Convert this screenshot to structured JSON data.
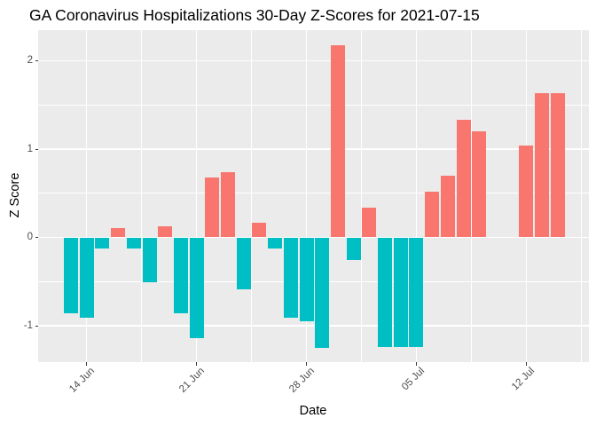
{
  "chart_data": {
    "type": "bar",
    "title": "GA Coronavirus Hospitalizations 30-Day Z-Scores for 2021-07-15",
    "xlabel": "Date",
    "ylabel": "Z Score",
    "legend": "none",
    "grid": true,
    "ylim": [
      -1.41,
      2.34
    ],
    "bars": [
      {
        "date": "13 Jun",
        "z": -0.86
      },
      {
        "date": "14 Jun",
        "z": -0.91
      },
      {
        "date": "15 Jun",
        "z": -0.13
      },
      {
        "date": "16 Jun",
        "z": 0.11
      },
      {
        "date": "17 Jun",
        "z": -0.13
      },
      {
        "date": "18 Jun",
        "z": -0.51
      },
      {
        "date": "19 Jun",
        "z": 0.13
      },
      {
        "date": "20 Jun",
        "z": -0.86
      },
      {
        "date": "21 Jun",
        "z": -1.14
      },
      {
        "date": "22 Jun",
        "z": 0.68
      },
      {
        "date": "23 Jun",
        "z": 0.74
      },
      {
        "date": "24 Jun",
        "z": -0.59
      },
      {
        "date": "25 Jun",
        "z": 0.17
      },
      {
        "date": "26 Jun",
        "z": -0.13
      },
      {
        "date": "27 Jun",
        "z": -0.91
      },
      {
        "date": "28 Jun",
        "z": -0.95
      },
      {
        "date": "29 Jun",
        "z": -1.25
      },
      {
        "date": "30 Jun",
        "z": 2.18
      },
      {
        "date": "01 Jul",
        "z": -0.26
      },
      {
        "date": "02 Jul",
        "z": 0.34
      },
      {
        "date": "03 Jul",
        "z": -1.24
      },
      {
        "date": "04 Jul",
        "z": -1.24
      },
      {
        "date": "05 Jul",
        "z": -1.24
      },
      {
        "date": "06 Jul",
        "z": 0.52
      },
      {
        "date": "07 Jul",
        "z": 0.7
      },
      {
        "date": "08 Jul",
        "z": 1.33
      },
      {
        "date": "09 Jul",
        "z": 1.2
      },
      {
        "date": "10 Jul",
        "z": 0
      },
      {
        "date": "11 Jul",
        "z": 0
      },
      {
        "date": "12 Jul",
        "z": 1.04
      },
      {
        "date": "13 Jul",
        "z": 1.63
      },
      {
        "date": "14 Jul",
        "z": 1.63
      }
    ],
    "x_ticks": [
      {
        "label": "14 Jun",
        "index": 1
      },
      {
        "label": "21 Jun",
        "index": 8
      },
      {
        "label": "28 Jun",
        "index": 15
      },
      {
        "label": "05 Jul",
        "index": 22
      },
      {
        "label": "12 Jul",
        "index": 29
      }
    ],
    "x_minor_indices": [
      4.5,
      11.5,
      18.5,
      25.5,
      32.5
    ],
    "y_ticks": [
      {
        "label": "2",
        "value": 2
      },
      {
        "label": "1",
        "value": 1
      },
      {
        "label": "0",
        "value": 0
      },
      {
        "label": "-1",
        "value": -1
      }
    ],
    "y_minor": [
      1.5,
      0.5,
      -0.5
    ],
    "colors": {
      "positive": "#F8766D",
      "negative": "#00BFC4",
      "panel_background": "#EBEBEB",
      "gridline": "#FFFFFF",
      "tick_text": "#4D4D4D",
      "tick_mark": "#333333",
      "title_text": "#000000",
      "page_background": "#FFFFFF"
    }
  }
}
